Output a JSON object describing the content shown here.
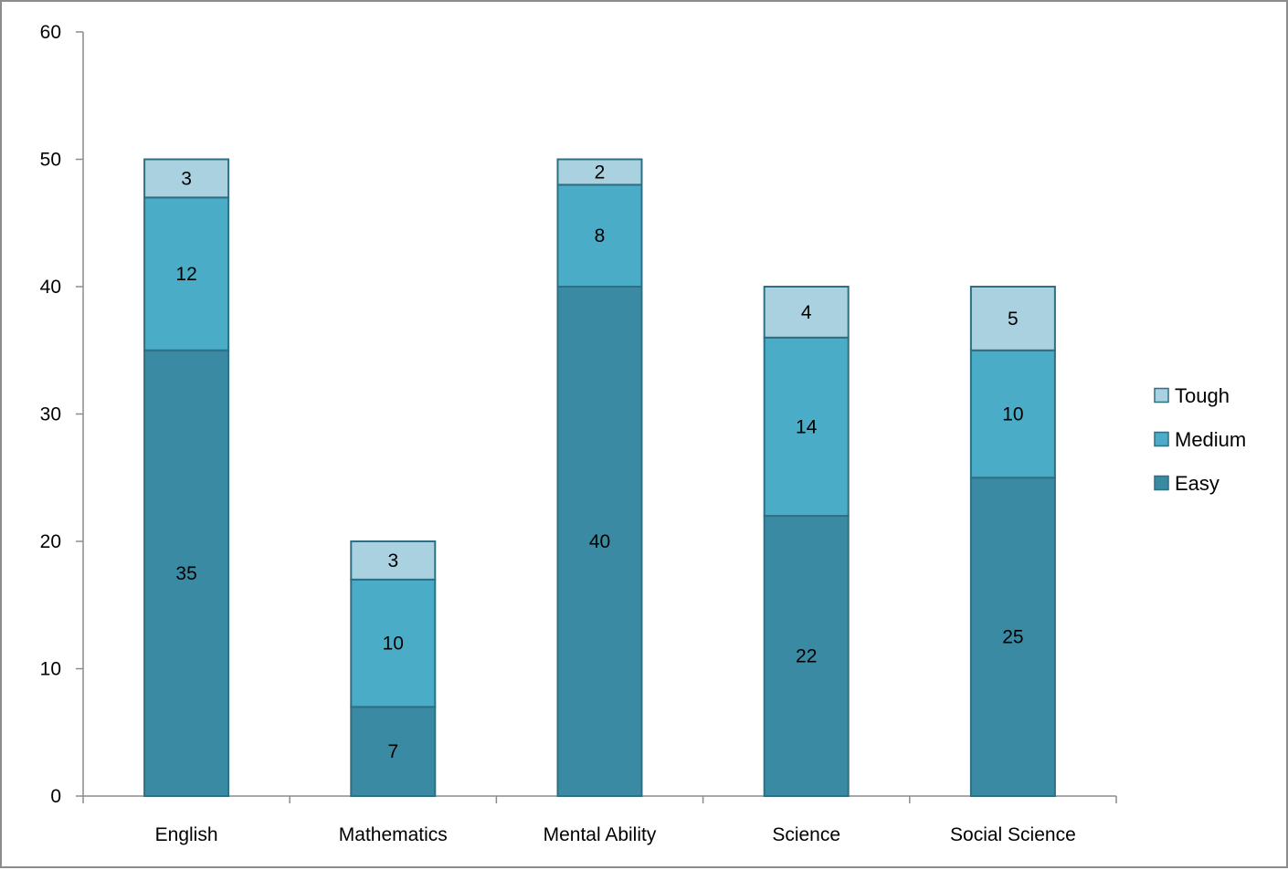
{
  "chart_data": {
    "type": "bar",
    "stacked": true,
    "categories": [
      "English",
      "Mathematics",
      "Mental Ability",
      "Science",
      "Social Science"
    ],
    "series": [
      {
        "name": "Easy",
        "values": [
          35,
          7,
          40,
          22,
          25
        ],
        "color": "#3b8aa3"
      },
      {
        "name": "Medium",
        "values": [
          12,
          10,
          8,
          14,
          10
        ],
        "color": "#4aacc6"
      },
      {
        "name": "Tough",
        "values": [
          3,
          3,
          2,
          4,
          5
        ],
        "color": "#a9d1df"
      }
    ],
    "ylim": [
      0,
      60
    ],
    "yticks": [
      0,
      10,
      20,
      30,
      40,
      50,
      60
    ],
    "title": "",
    "xlabel": "",
    "ylabel": "",
    "grid": false,
    "legend_position": "right",
    "legend_order": [
      "Tough",
      "Medium",
      "Easy"
    ],
    "colors": {
      "axis": "#8c8c8c",
      "bar_border": "#2f6f84",
      "frame": "#8c8c8c"
    }
  }
}
